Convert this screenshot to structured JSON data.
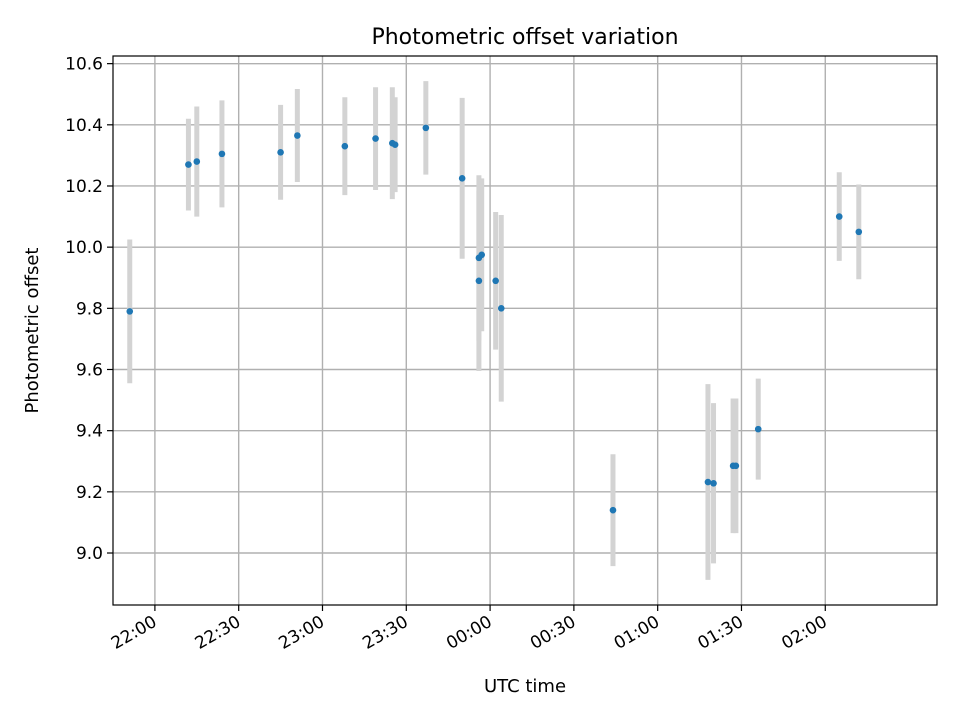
{
  "chart_data": {
    "type": "scatter",
    "title": "Photometric offset variation",
    "xlabel": "UTC time",
    "ylabel": "Photometric offset",
    "xlim": [
      "21:45",
      "02:40"
    ],
    "ylim": [
      8.83,
      10.625
    ],
    "grid": true,
    "x_ticks": [
      "22:00",
      "22:30",
      "23:00",
      "23:30",
      "00:00",
      "00:30",
      "01:00",
      "01:30",
      "02:00"
    ],
    "y_ticks": [
      "9.0",
      "9.2",
      "9.4",
      "9.6",
      "9.8",
      "10.0",
      "10.2",
      "10.4",
      "10.6"
    ],
    "colors": {
      "point": "#1f77b4",
      "error_bar": "#d3d3d3",
      "grid": "#b0b0b0"
    },
    "points": [
      {
        "x": "21:51",
        "y": 9.79,
        "yerr": 0.235
      },
      {
        "x": "22:12",
        "y": 10.27,
        "yerr": 0.15
      },
      {
        "x": "22:15",
        "y": 10.28,
        "yerr": 0.18
      },
      {
        "x": "22:24",
        "y": 10.305,
        "yerr": 0.175
      },
      {
        "x": "22:45",
        "y": 10.31,
        "yerr": 0.155
      },
      {
        "x": "22:51",
        "y": 10.365,
        "yerr": 0.152
      },
      {
        "x": "23:08",
        "y": 10.33,
        "yerr": 0.16
      },
      {
        "x": "23:19",
        "y": 10.355,
        "yerr": 0.168
      },
      {
        "x": "23:25",
        "y": 10.34,
        "yerr": 0.183
      },
      {
        "x": "23:26",
        "y": 10.335,
        "yerr": 0.155
      },
      {
        "x": "23:37",
        "y": 10.39,
        "yerr": 0.153
      },
      {
        "x": "23:50",
        "y": 10.225,
        "yerr": 0.263
      },
      {
        "x": "23:56",
        "y": 9.89,
        "yerr": 0.295
      },
      {
        "x": "23:56",
        "y": 9.965,
        "yerr": 0.27
      },
      {
        "x": "23:57",
        "y": 9.975,
        "yerr": 0.25
      },
      {
        "x": "00:02",
        "y": 9.89,
        "yerr": 0.225
      },
      {
        "x": "00:04",
        "y": 9.8,
        "yerr": 0.305
      },
      {
        "x": "00:44",
        "y": 9.14,
        "yerr": 0.183
      },
      {
        "x": "01:18",
        "y": 9.232,
        "yerr": 0.32
      },
      {
        "x": "01:20",
        "y": 9.228,
        "yerr": 0.262
      },
      {
        "x": "01:27",
        "y": 9.285,
        "yerr": 0.22
      },
      {
        "x": "01:28",
        "y": 9.285,
        "yerr": 0.22
      },
      {
        "x": "01:36",
        "y": 9.405,
        "yerr": 0.165
      },
      {
        "x": "02:05",
        "y": 10.1,
        "yerr": 0.145
      },
      {
        "x": "02:12",
        "y": 10.05,
        "yerr": 0.155
      }
    ]
  }
}
